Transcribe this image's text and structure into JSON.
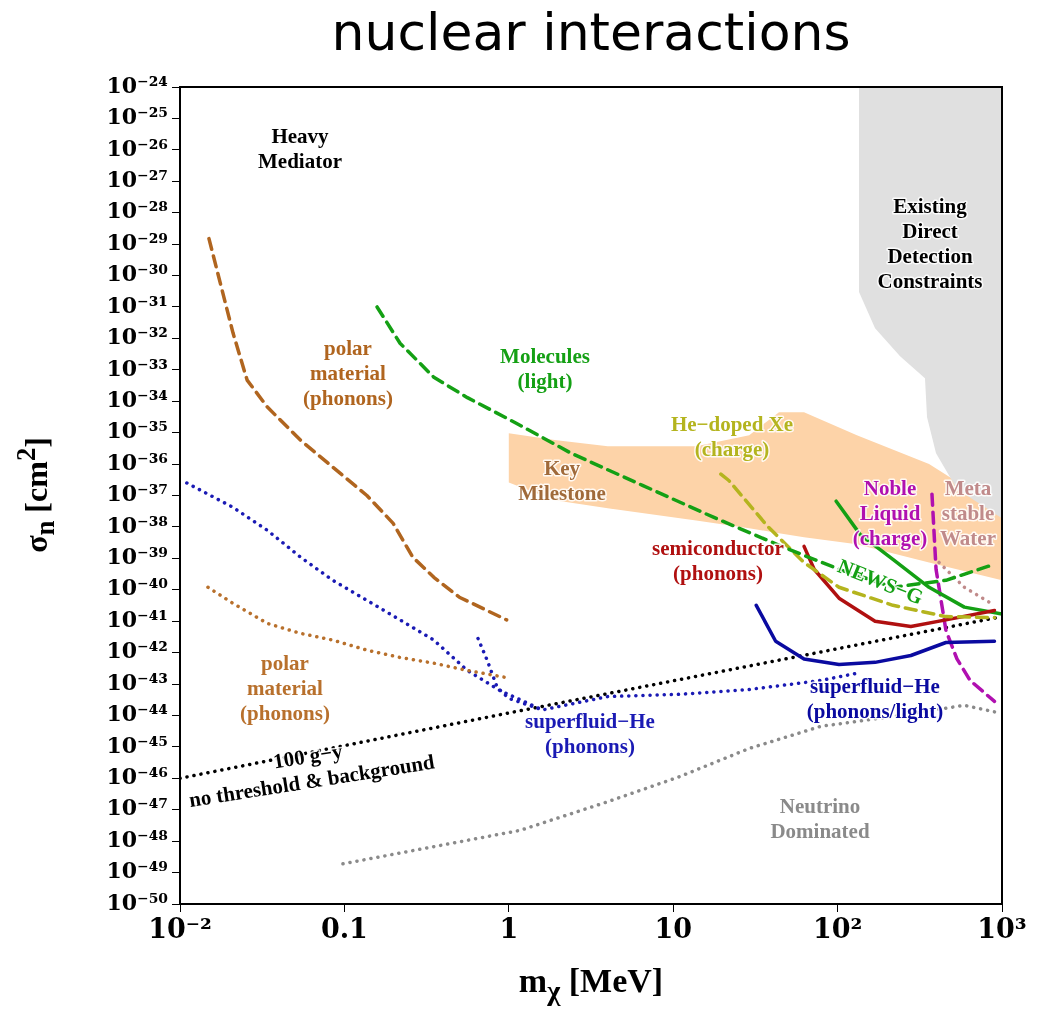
{
  "chart_data": {
    "type": "line",
    "title": "nuclear interactions",
    "xlabel": "m$_{χ}$ [MeV]",
    "ylabel": "σ$_{n}$ [cm$^{2}$]",
    "log": "xy",
    "grid": false,
    "xlim": [
      0.01,
      1000
    ],
    "ylim": [
      1e-50,
      1e-24
    ],
    "xticks": [
      {
        "value": 0.01,
        "label": "10⁻²"
      },
      0.1,
      1,
      10,
      {
        "value": 100,
        "label": "10²"
      },
      {
        "value": 1000,
        "label": "10³"
      }
    ],
    "yticks": [
      {
        "value": 1e-50,
        "label": "10⁻⁵⁰"
      },
      {
        "value": 1e-49,
        "label": "10⁻⁴⁹"
      },
      {
        "value": 1e-48,
        "label": "10⁻⁴⁸"
      },
      {
        "value": 1e-47,
        "label": "10⁻⁴⁷"
      },
      {
        "value": 1e-46,
        "label": "10⁻⁴⁶"
      },
      {
        "value": 1e-45,
        "label": "10⁻⁴⁵"
      },
      {
        "value": 1e-44,
        "label": "10⁻⁴⁴"
      },
      {
        "value": 1e-43,
        "label": "10⁻⁴³"
      },
      {
        "value": 1e-42,
        "label": "10⁻⁴²"
      },
      {
        "value": 1e-41,
        "label": "10⁻⁴¹"
      },
      {
        "value": 1e-40,
        "label": "10⁻⁴⁰"
      },
      {
        "value": 1e-39,
        "label": "10⁻³⁹"
      },
      {
        "value": 1e-38,
        "label": "10⁻³⁸"
      },
      {
        "value": 1e-37,
        "label": "10⁻³⁷"
      },
      {
        "value": 1e-36,
        "label": "10⁻³⁶"
      },
      {
        "value": 1e-35,
        "label": "10⁻³⁵"
      },
      {
        "value": 1e-34,
        "label": "10⁻³⁴"
      },
      {
        "value": 1e-33,
        "label": "10⁻³³"
      },
      {
        "value": 1e-32,
        "label": "10⁻³²"
      },
      {
        "value": 1e-31,
        "label": "10⁻³¹"
      },
      {
        "value": 1e-30,
        "label": "10⁻³⁰"
      },
      {
        "value": 1e-29,
        "label": "10⁻²⁹"
      },
      {
        "value": 1e-28,
        "label": "10⁻²⁸"
      },
      {
        "value": 1e-27,
        "label": "10⁻²⁷"
      },
      {
        "value": 1e-26,
        "label": "10⁻²⁶"
      },
      {
        "value": 1e-25,
        "label": "10⁻²⁵"
      },
      {
        "value": 1e-24,
        "label": "10⁻²⁴"
      }
    ],
    "series": [
      {
        "type": "area",
        "name": "Key\nMilestone",
        "color": "#fdd3a8",
        "x": [
          1.0,
          1.9,
          4.0,
          13.8,
          29,
          44,
          62.5,
          131,
          360,
          1000,
          1000,
          360,
          131,
          62.5,
          44,
          29,
          13.8,
          4.0,
          1.9,
          1.0
        ],
        "values": [
          9.5e-36,
          5.8e-36,
          3.7e-36,
          3.7e-36,
          8.3e-36,
          4.5e-35,
          4.5e-35,
          8.3e-36,
          1e-36,
          3.4e-38,
          2e-40,
          7.4e-40,
          2.8e-39,
          4.7e-39,
          6.3e-39,
          9.1e-39,
          1.6e-38,
          3.9e-38,
          7.1e-38,
          2.6e-37
        ]
      },
      {
        "type": "area",
        "name": "Existing\nDirect\nDetection\nConstraints",
        "color": "#e0e0e0",
        "x": [
          135,
          135,
          169,
          240,
          340,
          350,
          397,
          532,
          920,
          1000,
          1000
        ],
        "values": [
          1e-24,
          3e-31,
          2.1e-32,
          2.7e-33,
          5.4e-34,
          3.1e-35,
          2.2e-36,
          1.6e-37,
          2.5e-38,
          1.9e-38,
          1e-24
        ]
      },
      {
        "type": "line",
        "name": "polar\nmaterial\n(phonons)",
        "color": "#b0651f",
        "line_style": "dashed",
        "x": [
          0.015,
          0.021,
          0.0256,
          0.034,
          0.054,
          0.085,
          0.137,
          0.198,
          0.26,
          0.35,
          0.5,
          0.97
        ],
        "values": [
          1.5e-29,
          1.5e-32,
          4.7e-34,
          6.5e-35,
          5.8e-36,
          8e-37,
          1e-37,
          1.3e-38,
          1.1e-39,
          2.5e-40,
          5.8e-41,
          1.1e-41
        ]
      },
      {
        "type": "line",
        "name": "polar\nmaterial\n(phonons)",
        "color": "#b8702c",
        "line_style": "dotted",
        "x": [
          0.0148,
          0.021,
          0.034,
          0.054,
          0.085,
          0.137,
          0.218,
          0.35,
          0.56,
          0.97
        ],
        "values": [
          1.2e-40,
          3.7e-41,
          8.5e-42,
          4.1e-42,
          2.5e-42,
          1.2e-42,
          7e-43,
          4.6e-43,
          2.7e-43,
          1.6e-43
        ]
      },
      {
        "type": "line",
        "name": "superfluid−He\n(phonons)",
        "color": "#1a1ab4",
        "line_style": "dotted",
        "x": [
          0.011,
          0.021,
          0.034,
          0.054,
          0.085,
          0.137,
          0.218,
          0.35,
          0.56,
          0.88,
          1.6,
          4.0,
          10.8,
          29,
          79,
          137
        ],
        "values": [
          2.5e-37,
          4.2e-38,
          7.8e-39,
          1.1e-39,
          2e-40,
          4.6e-41,
          1.1e-41,
          2.5e-42,
          2.7e-43,
          6.3e-44,
          1.5e-44,
          4e-44,
          4.7e-44,
          6.7e-44,
          1.3e-43,
          2.3e-43
        ]
      },
      {
        "type": "line",
        "color": "#1a1ab4",
        "line_style": "dotted",
        "x": [
          0.65,
          0.74,
          0.85,
          1.0,
          1.6
        ],
        "values": [
          2.8e-42,
          5.6e-43,
          7.8e-44,
          3.5e-44,
          1.5e-44
        ]
      },
      {
        "type": "line",
        "name": "Molecules\n(light)",
        "color": "#14a014",
        "line_style": "dashed",
        "x": [
          0.158,
          0.218,
          0.35,
          0.56,
          1.11,
          2.4,
          6.5,
          17.7,
          48.5,
          102,
          217,
          456,
          900
        ],
        "values": [
          1e-31,
          7e-33,
          5.8e-34,
          1.3e-34,
          2e-35,
          2.2e-36,
          2.1e-37,
          2e-38,
          2.1e-39,
          4.5e-40,
          1.2e-40,
          2e-40,
          6.5e-40
        ]
      },
      {
        "type": "line",
        "name": "He−doped Xe\n(charge)",
        "color": "#b4b41e",
        "line_style": "dashed",
        "x": [
          19.5,
          21.8,
          37.8,
          62.5,
          102,
          217,
          456,
          900
        ],
        "values": [
          4.8e-37,
          3e-37,
          1e-38,
          7.4e-40,
          1.2e-40,
          3.2e-41,
          1.4e-41,
          1.3e-41
        ]
      },
      {
        "type": "line",
        "name": "semiconductor\n(phonons)",
        "color": "#b01010",
        "line_style": "solid",
        "x": [
          62.5,
          72,
          102,
          169,
          279,
          456,
          900
        ],
        "values": [
          2.4e-39,
          4.5e-40,
          5.4e-41,
          1e-41,
          6.8e-42,
          1.1e-41,
          2.2e-41
        ]
      },
      {
        "type": "line",
        "name": "superfluid−He\n(phonons/light)",
        "color": "#0a0aa0",
        "line_style": "solid",
        "x": [
          32,
          42,
          62.5,
          102,
          169,
          279,
          456,
          900
        ],
        "values": [
          3.2e-41,
          2.3e-42,
          6.3e-43,
          4.2e-43,
          4.9e-43,
          8.1e-43,
          2.1e-42,
          2.3e-42
        ]
      },
      {
        "type": "line",
        "name": "NEWS−G",
        "color": "#14a014",
        "line_style": "solid",
        "x": [
          98,
          137,
          217,
          360,
          590,
          1000
        ],
        "values": [
          6.6e-38,
          5.8e-39,
          9.3e-40,
          1.2e-40,
          2.8e-41,
          1.7e-41
        ]
      },
      {
        "type": "line",
        "name": "Meta\nstable\nWater",
        "color": "#c08a8a",
        "line_style": "dotted",
        "x": [
          414,
          590,
          900
        ],
        "values": [
          7.4e-40,
          1.2e-40,
          3.2e-41
        ]
      },
      {
        "type": "line",
        "name": "Noble\nLiquid\n(charge)",
        "color": "#b010b0",
        "line_style": "dashed",
        "x": [
          375,
          397,
          456,
          532,
          640,
          900
        ],
        "values": [
          1.1e-37,
          4.5e-40,
          5.1e-42,
          6.3e-43,
          1.3e-43,
          2.8e-44
        ]
      },
      {
        "type": "line",
        "name": "100 g−y\nno threshold & background",
        "color": "#000000",
        "line_style": "dotted",
        "x": [
          0.01,
          1,
          1000
        ],
        "values": [
          1e-46,
          1.2e-44,
          1.4e-41
        ]
      },
      {
        "type": "line",
        "name": "Neutrino\nDominated",
        "color": "#8a8a8a",
        "line_style": "dotted",
        "x": [
          0.098,
          1.17,
          4,
          10.8,
          29,
          79,
          217,
          590,
          900
        ],
        "values": [
          1.9e-49,
          2.2e-48,
          1.8e-47,
          1.1e-46,
          8.9e-46,
          4.5e-45,
          9.3e-45,
          2.1e-44,
          1.3e-44
        ]
      }
    ],
    "annotations": [
      "Heavy\nMediator"
    ]
  }
}
